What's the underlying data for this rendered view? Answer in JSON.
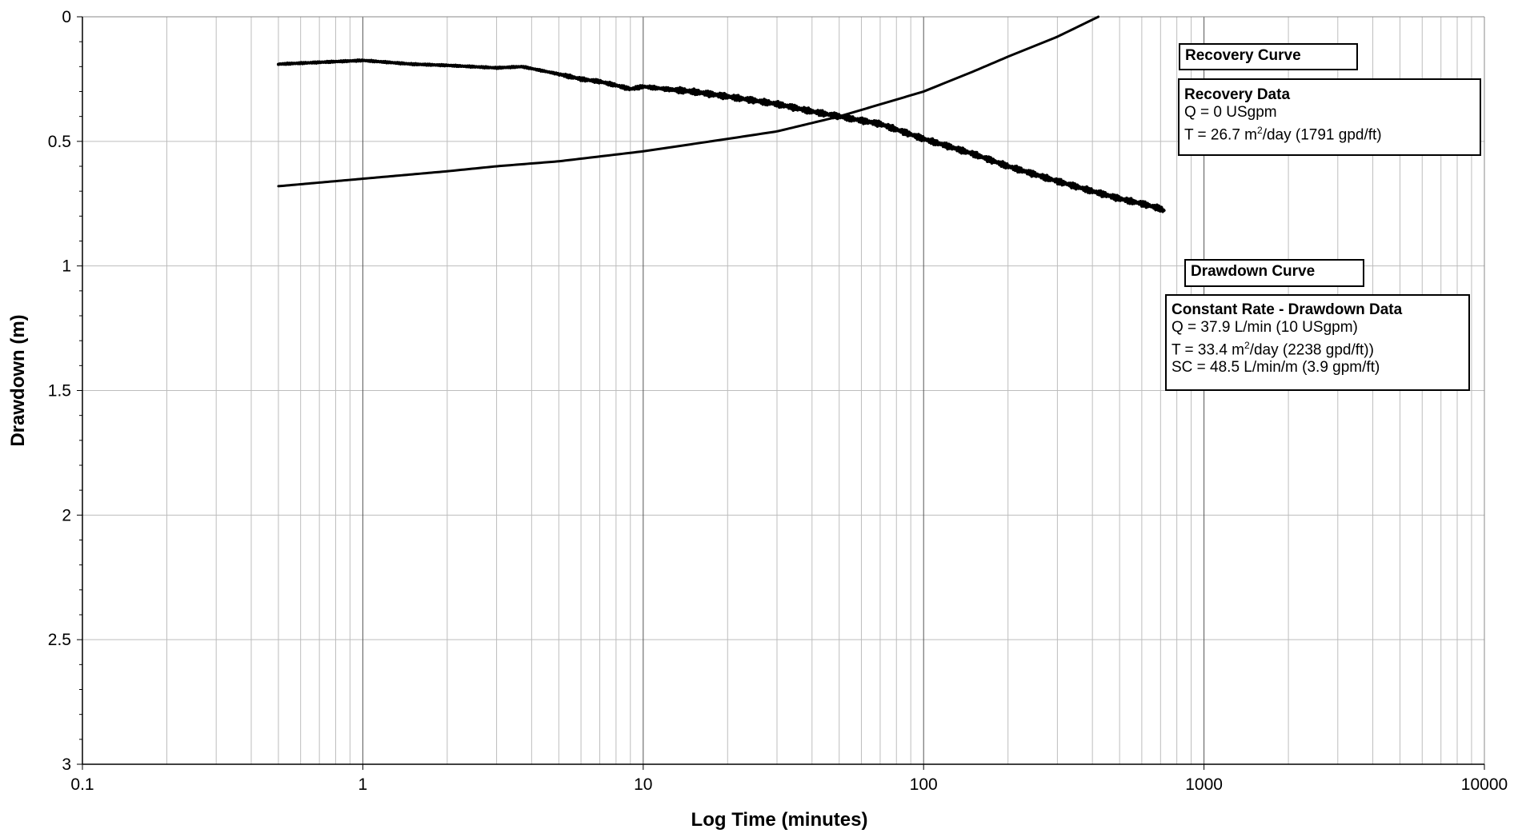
{
  "chart_data": {
    "type": "line",
    "xlabel": "Log Time (minutes)",
    "ylabel": "Drawdown (m)",
    "x_scale": "log",
    "xlim": [
      0.1,
      10000
    ],
    "ylim": [
      0,
      3
    ],
    "y_inverted": true,
    "grid": true,
    "x_tick_labels": [
      "0.1",
      "1",
      "10",
      "100",
      "1000",
      "10000"
    ],
    "y_tick_labels": [
      "0",
      "0.5",
      "1",
      "1.5",
      "2",
      "2.5",
      "3"
    ],
    "series": [
      {
        "key": "drawdown",
        "noisy": true,
        "x": [
          0.5,
          1,
          1.5,
          2,
          3,
          3.7,
          5,
          6,
          7,
          8,
          9,
          10,
          12,
          15,
          20,
          30,
          40,
          50,
          70,
          100,
          150,
          200,
          300,
          400,
          500,
          600,
          700,
          720
        ],
        "y": [
          0.19,
          0.175,
          0.19,
          0.195,
          0.205,
          0.2,
          0.23,
          0.25,
          0.26,
          0.275,
          0.29,
          0.28,
          0.29,
          0.3,
          0.32,
          0.35,
          0.38,
          0.4,
          0.43,
          0.49,
          0.55,
          0.6,
          0.66,
          0.7,
          0.73,
          0.75,
          0.77,
          0.78
        ]
      },
      {
        "key": "recovery",
        "noisy": false,
        "x": [
          0.5,
          1,
          2,
          3,
          5,
          10,
          20,
          30,
          50,
          100,
          150,
          200,
          300,
          420
        ],
        "y": [
          0.68,
          0.65,
          0.62,
          0.6,
          0.58,
          0.54,
          0.49,
          0.46,
          0.4,
          0.3,
          0.22,
          0.16,
          0.08,
          0.0
        ]
      }
    ]
  },
  "annotations": {
    "recovery_title": "Recovery Curve",
    "recovery_header": "Recovery Data",
    "recovery_q": "Q = 0 USgpm",
    "recovery_t_prefix": "T = 26.7 m",
    "recovery_t_sup": "2",
    "recovery_t_suffix": "/day (1791 gpd/ft)",
    "drawdown_title": "Drawdown Curve",
    "drawdown_header": "Constant Rate - Drawdown Data",
    "drawdown_q": "Q = 37.9 L/min  (10 USgpm)",
    "drawdown_t_prefix": "T = 33.4 m",
    "drawdown_t_sup": "2",
    "drawdown_t_suffix": "/day (2238 gpd/ft))",
    "drawdown_sc": "SC = 48.5 L/min/m  (3.9 gpm/ft)"
  }
}
